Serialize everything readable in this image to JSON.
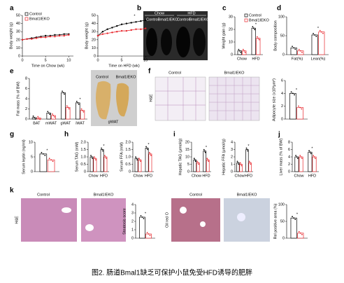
{
  "figure": {
    "caption": "图2. 肠道Bmal1缺乏可保护小鼠免受HFD诱导的肥胖",
    "panel_labels": [
      "a",
      "b",
      "c",
      "d",
      "e",
      "f",
      "g",
      "h",
      "i",
      "j",
      "k"
    ],
    "image_labels": [
      "Chow",
      "HFD",
      "Control",
      "Bmal1IEKO",
      "Control",
      "Bmal1IEKO",
      "Control",
      "Bmal1IEKO",
      "gWAT",
      "Control",
      "Bmal1IEKO",
      "H&E",
      "Control",
      "Bmal1IEKO",
      "H&E",
      "Oil red O",
      "Control",
      "Bmal1IEKO"
    ]
  },
  "chart_data": [
    {
      "type": "line",
      "xlabel": "Time on Chow (wk)",
      "ylabel": "Body weight (g)",
      "x": [
        0,
        1,
        2,
        3,
        4,
        5,
        6,
        7,
        8,
        9,
        10
      ],
      "xlim": [
        0,
        11
      ],
      "xticks": [
        0,
        5,
        10
      ],
      "ylim": [
        0,
        50
      ],
      "yticks": [
        0,
        10,
        20,
        30,
        40,
        50
      ],
      "legend": true,
      "series": [
        {
          "name": "Control",
          "color": "#000000",
          "values": [
            20,
            21,
            22,
            23,
            24,
            25,
            25,
            26,
            26,
            27,
            27
          ]
        },
        {
          "name": "Bmal1IEKO",
          "color": "#e8262c",
          "values": [
            20,
            21,
            21,
            22,
            23,
            23,
            24,
            24,
            25,
            25,
            26
          ]
        }
      ]
    },
    {
      "type": "line",
      "xlabel": "Time on HFD (wk)",
      "ylabel": "Body weight (g)",
      "x": [
        0,
        1,
        2,
        3,
        4,
        5,
        6,
        7,
        8,
        9,
        10
      ],
      "xlim": [
        0,
        11
      ],
      "xticks": [
        0,
        5,
        10
      ],
      "ylim": [
        0,
        50
      ],
      "yticks": [
        0,
        10,
        20,
        30,
        40,
        50
      ],
      "annotation": "*",
      "series": [
        {
          "name": "Control",
          "color": "#000000",
          "values": [
            25,
            30,
            33,
            35,
            37,
            39,
            40,
            41,
            42,
            43,
            44
          ]
        },
        {
          "name": "Bmal1IEKO",
          "color": "#e8262c",
          "values": [
            25,
            27,
            28,
            29,
            30,
            31,
            31,
            32,
            33,
            33,
            34
          ]
        }
      ]
    },
    {
      "type": "bar",
      "ylabel": "Weight gain (g)",
      "categories": [
        "Chow",
        "HFD"
      ],
      "ylim": [
        0,
        30
      ],
      "yticks": [
        0,
        10,
        20,
        30
      ],
      "legend": true,
      "annotation": "*",
      "series": [
        {
          "name": "Control",
          "color": "#000000",
          "values": [
            3,
            21
          ]
        },
        {
          "name": "Bmal1IEKO",
          "color": "#e8262c",
          "values": [
            3,
            13
          ]
        }
      ]
    },
    {
      "type": "bar",
      "ylabel": "Body composition",
      "categories": [
        "Fat(%)",
        "Lean(%)"
      ],
      "ylim": [
        0,
        100
      ],
      "yticks": [
        0,
        50,
        100
      ],
      "annotation": "*",
      "series": [
        {
          "name": "Control",
          "color": "#000000",
          "values": [
            18,
            52
          ]
        },
        {
          "name": "Bmal1IEKO",
          "color": "#e8262c",
          "values": [
            10,
            60
          ]
        }
      ]
    },
    {
      "type": "bar",
      "ylabel": "Fat mass (% of BW)",
      "categories": [
        "BAT",
        "mWAT",
        "gWAT",
        "iWAT"
      ],
      "ylim": [
        0,
        8
      ],
      "yticks": [
        0,
        2,
        4,
        6,
        8
      ],
      "annotation": "*",
      "series": [
        {
          "name": "Control",
          "color": "#000000",
          "values": [
            0.3,
            1.2,
            5.2,
            3.2
          ]
        },
        {
          "name": "Bmal1IEKO",
          "color": "#e8262c",
          "values": [
            0.2,
            0.7,
            2.3,
            1.7
          ]
        }
      ]
    },
    {
      "type": "bar",
      "ylabel": "Adipocyte size (x10³μm²)",
      "categories": [
        null
      ],
      "ylim": [
        0,
        6
      ],
      "yticks": [
        0,
        2,
        4,
        6
      ],
      "annotation": "*",
      "series": [
        {
          "name": "Control",
          "color": "#000000",
          "values": [
            4
          ]
        },
        {
          "name": "Bmal1IEKO",
          "color": "#e8262c",
          "values": [
            1.8
          ]
        }
      ]
    },
    {
      "type": "bar",
      "ylabel": "Serum leptin (ng/ml)",
      "categories": [
        null
      ],
      "ylim": [
        0,
        10
      ],
      "yticks": [
        0,
        5,
        10
      ],
      "annotation": "*",
      "series": [
        {
          "name": "Control",
          "color": "#000000",
          "values": [
            6
          ]
        },
        {
          "name": "Bmal1IEKO",
          "color": "#e8262c",
          "values": [
            4
          ]
        }
      ]
    },
    {
      "type": "bar",
      "ylabel": "Serum TAG (mM)",
      "categories": [
        "Chow",
        "HFD"
      ],
      "ylim": [
        0,
        2
      ],
      "yticks": [
        0,
        0.5,
        {
          "value": 1,
          "label": "1.0"
        },
        1.5,
        {
          "value": 2,
          "label": "2.0"
        }
      ],
      "annotation": "*",
      "series": [
        {
          "name": "Control",
          "color": "#000000",
          "values": [
            1.0,
            1.5
          ]
        },
        {
          "name": "Bmal1IEKO",
          "color": "#e8262c",
          "values": [
            0.9,
            1.0
          ]
        }
      ]
    },
    {
      "type": "bar",
      "ylabel": "Serum FFA (mM)",
      "categories": [
        "Chow",
        "HFD"
      ],
      "ylim": [
        0,
        2
      ],
      "yticks": [
        0,
        0.5,
        {
          "value": 1,
          "label": "1.0"
        },
        1.5,
        {
          "value": 2,
          "label": "2.0"
        }
      ],
      "annotation": "*",
      "series": [
        {
          "name": "Control",
          "color": "#000000",
          "values": [
            0.9,
            1.6
          ]
        },
        {
          "name": "Bmal1IEKO",
          "color": "#e8262c",
          "values": [
            0.8,
            1.2
          ]
        }
      ]
    },
    {
      "type": "bar",
      "ylabel": "Hepatic TAG (μmol/g)",
      "categories": [
        "Chow",
        "HFD"
      ],
      "ylim": [
        0,
        20
      ],
      "yticks": [
        0,
        5,
        10,
        15,
        20
      ],
      "annotation": "*",
      "series": [
        {
          "name": "Control",
          "color": "#000000",
          "values": [
            8,
            14
          ]
        },
        {
          "name": "Bmal1IEKO",
          "color": "#e8262c",
          "values": [
            6,
            8
          ]
        }
      ]
    },
    {
      "type": "bar",
      "ylabel": "Hepatic FFA (μmol/g)",
      "categories": [
        "Chow",
        "HFD"
      ],
      "ylim": [
        0,
        4
      ],
      "yticks": [
        0,
        1,
        2,
        3,
        4
      ],
      "annotation": "*",
      "series": [
        {
          "name": "Control",
          "color": "#000000",
          "values": [
            1.2,
            3.0
          ]
        },
        {
          "name": "Bmal1IEKO",
          "color": "#e8262c",
          "values": [
            1.0,
            1.2
          ]
        }
      ]
    },
    {
      "type": "bar",
      "ylabel": "Liver mass (% of BW)",
      "categories": [
        "Chow",
        "HFD"
      ],
      "ylim": [
        0,
        8
      ],
      "yticks": [
        0,
        2,
        4,
        6,
        8
      ],
      "annotation": "*",
      "series": [
        {
          "name": "Control",
          "color": "#000000",
          "values": [
            4,
            5.3
          ]
        },
        {
          "name": "Bmal1IEKO",
          "color": "#e8262c",
          "values": [
            4,
            4
          ]
        }
      ]
    },
    {
      "type": "bar",
      "ylabel": "Steatosis score",
      "categories": [
        null
      ],
      "ylim": [
        0,
        4
      ],
      "yticks": [
        0,
        1,
        2,
        3,
        4
      ],
      "annotation": "*",
      "series": [
        {
          "name": "Control",
          "color": "#000000",
          "values": [
            2.5
          ]
        },
        {
          "name": "Bmal1IEKO",
          "color": "#e8262c",
          "values": [
            0.5
          ]
        }
      ]
    },
    {
      "type": "bar",
      "ylabel": "Rel positive area (%)",
      "categories": [
        null
      ],
      "ylim": [
        0,
        100
      ],
      "yticks": [
        0,
        50,
        100
      ],
      "annotation": "*",
      "series": [
        {
          "name": "Control",
          "color": "#000000",
          "values": [
            60
          ]
        },
        {
          "name": "Bmal1IEKO",
          "color": "#e8262c",
          "values": [
            15
          ]
        }
      ]
    }
  ]
}
